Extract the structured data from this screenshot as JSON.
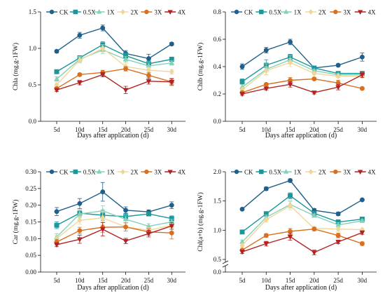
{
  "chart_data": [
    {
      "type": "line",
      "categories": [
        "5d",
        "10d",
        "15d",
        "20d",
        "25d",
        "30d"
      ],
      "xlabel": "Days after application (d)",
      "ylabel": "Chla (mg.g-1FW)",
      "ylim": [
        0.0,
        1.5
      ],
      "yticks": [
        "0.0",
        "0.5",
        "1.0",
        "1.5"
      ],
      "legend": "top",
      "series": [
        {
          "name": "CK",
          "values": [
            0.96,
            1.18,
            1.28,
            0.93,
            0.86,
            1.06
          ],
          "err": [
            0.02,
            0.04,
            0.04,
            0.04,
            0.06,
            0.02
          ]
        },
        {
          "name": "0.5X",
          "values": [
            0.68,
            0.87,
            1.05,
            0.9,
            0.79,
            0.85
          ],
          "err": [
            0.02,
            0.03,
            0.04,
            0.04,
            0.04,
            0.03
          ]
        },
        {
          "name": "1X",
          "values": [
            0.58,
            0.85,
            0.98,
            0.85,
            0.76,
            0.8
          ],
          "err": [
            0.03,
            0.04,
            0.05,
            0.04,
            0.04,
            0.03
          ]
        },
        {
          "name": "2X",
          "values": [
            0.5,
            0.84,
            1.0,
            0.75,
            0.7,
            0.68
          ],
          "err": [
            0.03,
            0.04,
            0.05,
            0.04,
            0.04,
            0.03
          ]
        },
        {
          "name": "3X",
          "values": [
            0.45,
            0.64,
            0.67,
            0.72,
            0.63,
            0.54
          ],
          "err": [
            0.02,
            0.02,
            0.03,
            0.03,
            0.04,
            0.05
          ]
        },
        {
          "name": "4X",
          "values": [
            0.43,
            0.53,
            0.64,
            0.43,
            0.55,
            0.54
          ],
          "err": [
            0.02,
            0.03,
            0.03,
            0.05,
            0.04,
            0.04
          ]
        }
      ]
    },
    {
      "type": "line",
      "categories": [
        "5d",
        "10d",
        "15d",
        "20d",
        "25d",
        "30d"
      ],
      "xlabel": "Days after application (d)",
      "ylabel": "Chlb (mg.g-1FW)",
      "ylim": [
        0.0,
        0.8
      ],
      "yticks": [
        "0.0",
        "0.2",
        "0.4",
        "0.6",
        "0.8"
      ],
      "legend": "top",
      "series": [
        {
          "name": "CK",
          "values": [
            0.4,
            0.52,
            0.58,
            0.39,
            0.41,
            0.47
          ],
          "err": [
            0.02,
            0.02,
            0.02,
            0.01,
            0.01,
            0.03
          ]
        },
        {
          "name": "0.5X",
          "values": [
            0.29,
            0.41,
            0.47,
            0.39,
            0.35,
            0.35
          ],
          "err": [
            0.02,
            0.04,
            0.02,
            0.01,
            0.01,
            0.01
          ]
        },
        {
          "name": "1X",
          "values": [
            0.25,
            0.38,
            0.45,
            0.37,
            0.34,
            0.34
          ],
          "err": [
            0.02,
            0.04,
            0.03,
            0.01,
            0.01,
            0.01
          ]
        },
        {
          "name": "2X",
          "values": [
            0.23,
            0.37,
            0.43,
            0.35,
            0.33,
            0.33
          ],
          "err": [
            0.02,
            0.03,
            0.03,
            0.01,
            0.01,
            0.01
          ]
        },
        {
          "name": "3X",
          "values": [
            0.21,
            0.27,
            0.3,
            0.31,
            0.28,
            0.24
          ],
          "err": [
            0.01,
            0.01,
            0.02,
            0.01,
            0.02,
            0.01
          ]
        },
        {
          "name": "4X",
          "values": [
            0.2,
            0.24,
            0.27,
            0.21,
            0.25,
            0.34
          ],
          "err": [
            0.01,
            0.01,
            0.02,
            0.01,
            0.02,
            0.02
          ]
        }
      ]
    },
    {
      "type": "line",
      "categories": [
        "5d",
        "10d",
        "15d",
        "20d",
        "25d",
        "30d"
      ],
      "xlabel": "Days after application (d)",
      "ylabel": "Car (mg.g-1FW)",
      "ylim": [
        0.0,
        0.3
      ],
      "yticks": [
        "0.00",
        "0.05",
        "0.10",
        "0.15",
        "0.20",
        "0.25",
        "0.30"
      ],
      "legend": "top",
      "series": [
        {
          "name": "CK",
          "values": [
            0.181,
            0.205,
            0.24,
            0.185,
            0.18,
            0.2
          ],
          "err": [
            0.012,
            0.015,
            0.028,
            0.01,
            0.006,
            0.01
          ]
        },
        {
          "name": "0.5X",
          "values": [
            0.14,
            0.176,
            0.17,
            0.166,
            0.174,
            0.16
          ],
          "err": [
            0.01,
            0.01,
            0.015,
            0.01,
            0.006,
            0.008
          ]
        },
        {
          "name": "1X",
          "values": [
            0.105,
            0.174,
            0.183,
            0.158,
            0.137,
            0.15
          ],
          "err": [
            0.01,
            0.012,
            0.015,
            0.01,
            0.008,
            0.008
          ]
        },
        {
          "name": "2X",
          "values": [
            0.1,
            0.155,
            0.162,
            0.135,
            0.125,
            0.14
          ],
          "err": [
            0.01,
            0.012,
            0.02,
            0.012,
            0.008,
            0.008
          ]
        },
        {
          "name": "3X",
          "values": [
            0.09,
            0.124,
            0.134,
            0.135,
            0.12,
            0.117
          ],
          "err": [
            0.008,
            0.01,
            0.015,
            0.012,
            0.01,
            0.018
          ]
        },
        {
          "name": "4X",
          "values": [
            0.082,
            0.098,
            0.128,
            0.093,
            0.115,
            0.138
          ],
          "err": [
            0.006,
            0.012,
            0.02,
            0.008,
            0.01,
            0.01
          ]
        }
      ]
    },
    {
      "type": "line",
      "categories": [
        "5d",
        "10d",
        "15d",
        "20d",
        "25d",
        "30d"
      ],
      "xlabel": "Days after application (d)",
      "ylabel": "Chl(a+b) (mg.g-1FW)",
      "ylim": [
        0.0,
        2.0
      ],
      "axis_break": [
        0.0,
        0.5
      ],
      "yticks": [
        "0.0",
        "0.5",
        "1.0",
        "1.5",
        "2.0"
      ],
      "legend": "top",
      "series": [
        {
          "name": "CK",
          "values": [
            1.36,
            1.71,
            1.85,
            1.34,
            1.28,
            1.52
          ],
          "err": [
            0.02,
            0.03,
            0.03,
            0.03,
            0.03,
            0.02
          ]
        },
        {
          "name": "0.5X",
          "values": [
            0.97,
            1.28,
            1.59,
            1.29,
            1.14,
            1.19
          ],
          "err": [
            0.02,
            0.04,
            0.05,
            0.03,
            0.04,
            0.02
          ]
        },
        {
          "name": "1X",
          "values": [
            0.8,
            1.22,
            1.44,
            1.25,
            1.09,
            1.16
          ],
          "err": [
            0.03,
            0.04,
            0.06,
            0.03,
            0.04,
            0.02
          ]
        },
        {
          "name": "2X",
          "values": [
            0.74,
            1.18,
            1.42,
            1.03,
            1.02,
            1.01
          ],
          "err": [
            0.03,
            0.04,
            0.07,
            0.03,
            0.04,
            0.02
          ]
        },
        {
          "name": "3X",
          "values": [
            0.66,
            0.91,
            0.98,
            1.02,
            0.91,
            0.77
          ],
          "err": [
            0.02,
            0.03,
            0.05,
            0.03,
            0.04,
            0.03
          ]
        },
        {
          "name": "4X",
          "values": [
            0.63,
            0.77,
            0.89,
            0.62,
            0.8,
            0.96
          ],
          "err": [
            0.03,
            0.04,
            0.06,
            0.04,
            0.03,
            0.03
          ]
        }
      ]
    }
  ],
  "styles": {
    "colors": [
      "#1f5f8b",
      "#19979a",
      "#84d1ba",
      "#f0d69a",
      "#d9701f",
      "#b22222"
    ],
    "markers": [
      "circle",
      "square",
      "triangle",
      "diamond",
      "circle",
      "triangle-down"
    ]
  }
}
